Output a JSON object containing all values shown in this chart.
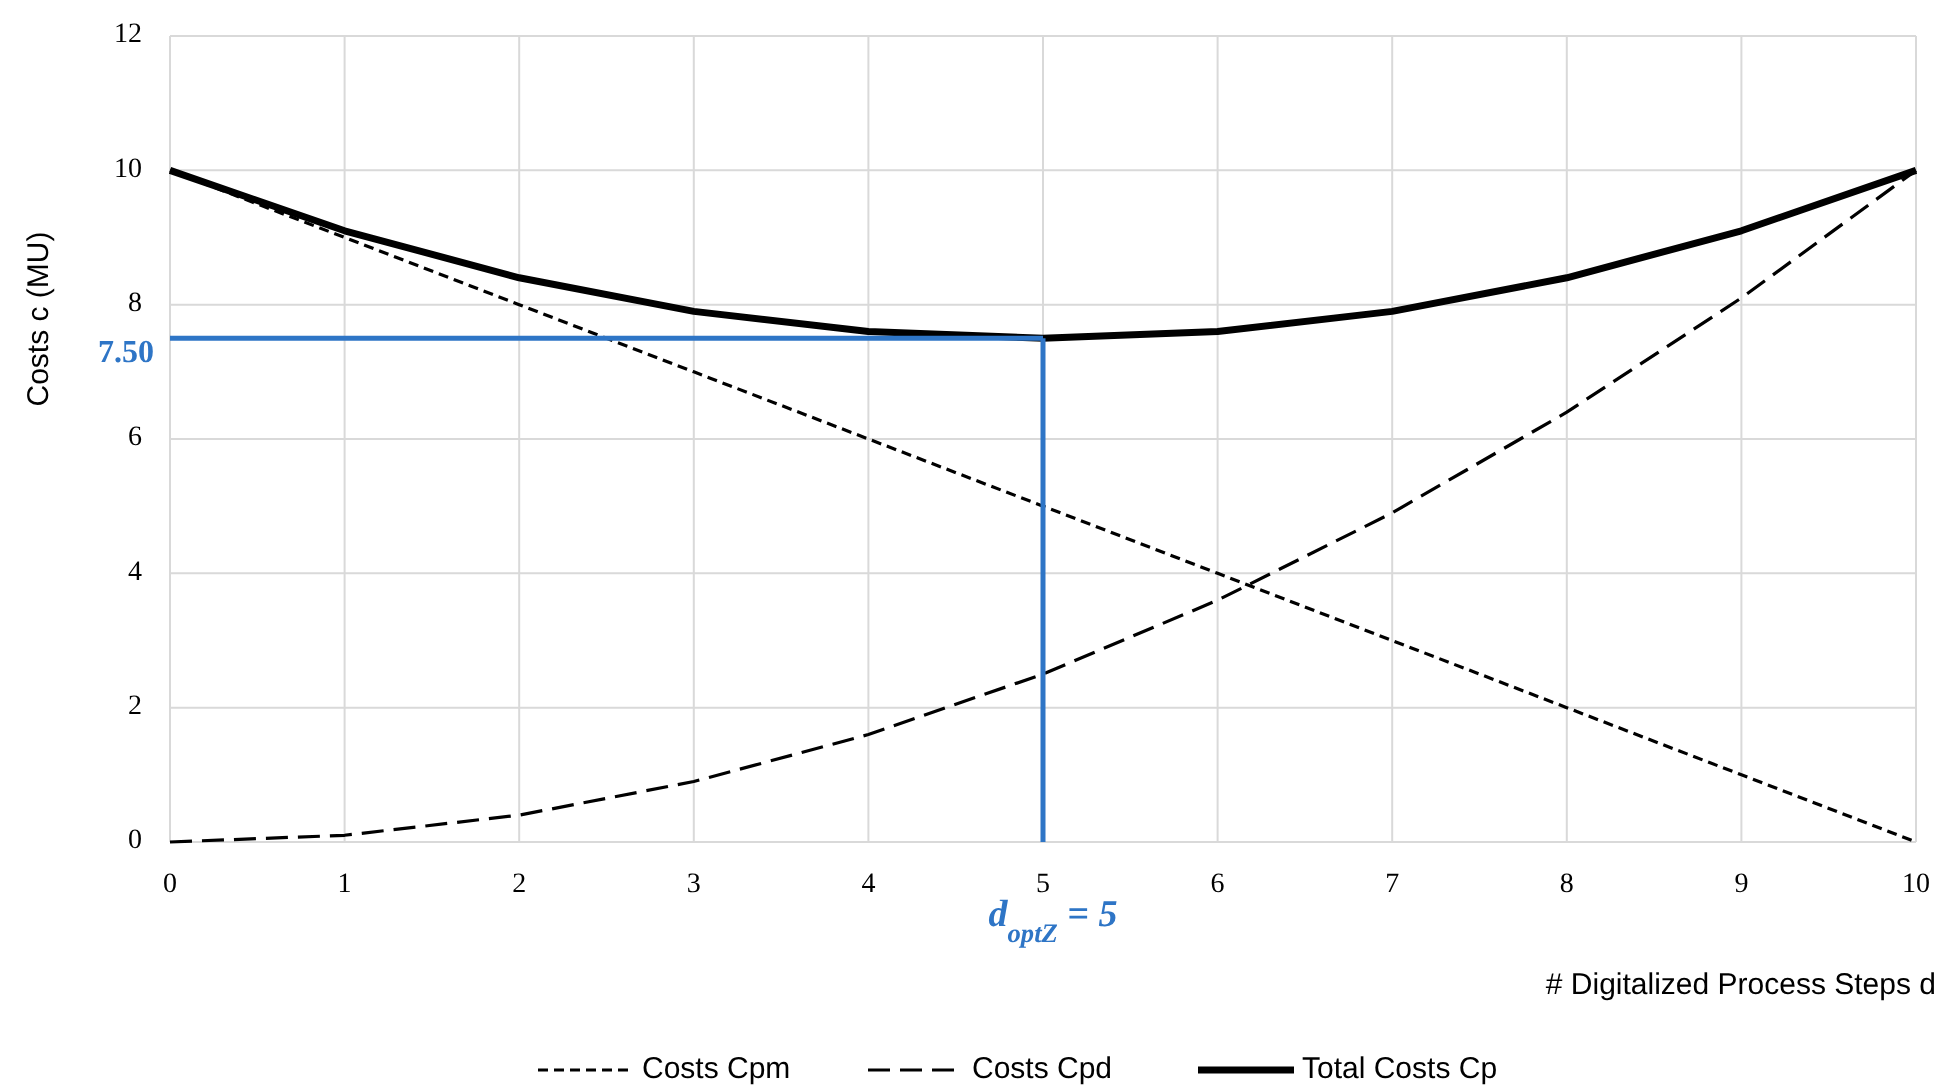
{
  "chart_data": {
    "type": "line",
    "xlabel": "# Digitalized Process Steps  d",
    "ylabel": "Costs  c  (MU)",
    "x": [
      0,
      1,
      2,
      3,
      4,
      5,
      6,
      7,
      8,
      9,
      10
    ],
    "series": [
      {
        "name": "Costs Cpm",
        "color": "#000000",
        "line_style": "dotted",
        "values": [
          10,
          9,
          8,
          7,
          6,
          5,
          4,
          3,
          2,
          1,
          0
        ]
      },
      {
        "name": "Costs Cpd",
        "color": "#000000",
        "line_style": "dashed",
        "values": [
          0,
          0.1,
          0.4,
          0.9,
          1.6,
          2.5,
          3.6,
          4.9,
          6.4,
          8.1,
          10
        ]
      },
      {
        "name": "Total Costs Cp",
        "color": "#000000",
        "line_style": "solid",
        "values": [
          10,
          9.1,
          8.4,
          7.9,
          7.6,
          7.5,
          7.6,
          7.9,
          8.4,
          9.1,
          10
        ]
      }
    ],
    "xlim": [
      0,
      10
    ],
    "xticks": [
      0,
      1,
      2,
      3,
      4,
      5,
      6,
      7,
      8,
      9,
      10
    ],
    "ylim": [
      0,
      12
    ],
    "yticks": [
      0,
      2,
      4,
      6,
      8,
      10,
      12
    ],
    "grid": true,
    "legend": "bottom",
    "marker": "none",
    "ref_lines": [
      {
        "axis": "y",
        "value": 7.5,
        "label": "7.50",
        "color": "#2e75c6"
      },
      {
        "axis": "x",
        "value": 5,
        "label": "d$_{optZ}$ = 5",
        "color": "#2e75c6"
      }
    ]
  }
}
